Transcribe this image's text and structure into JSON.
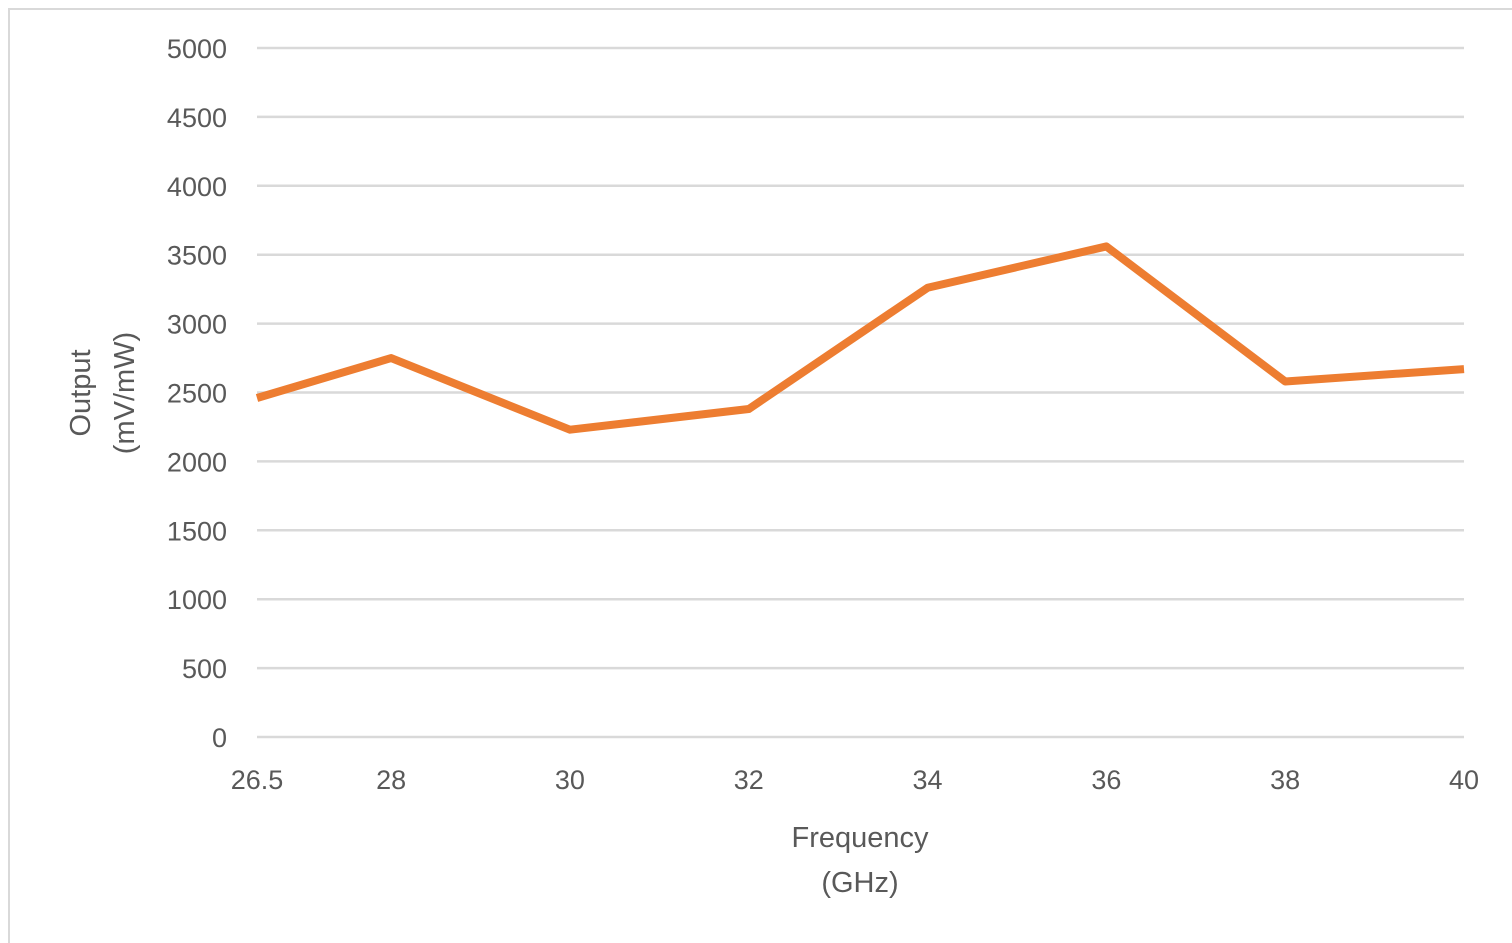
{
  "chart_data": {
    "type": "line",
    "x": [
      "26.5",
      "28",
      "30",
      "32",
      "34",
      "36",
      "38",
      "40"
    ],
    "series": [
      {
        "values": [
          2460,
          2750,
          2230,
          2380,
          3260,
          3560,
          2580,
          2670
        ],
        "color": "#ed7d31"
      }
    ],
    "xlabel": [
      "Frequency",
      "(GHz)"
    ],
    "ylabel": [
      "Output",
      "(mV/mW)"
    ],
    "yticks": [
      0,
      500,
      1000,
      1500,
      2000,
      2500,
      3000,
      3500,
      4000,
      4500,
      5000
    ],
    "ylim": [
      0,
      5000
    ],
    "grid": true,
    "legend": "none",
    "gridline_color": "#d9d9d9",
    "text_color": "#595959"
  }
}
